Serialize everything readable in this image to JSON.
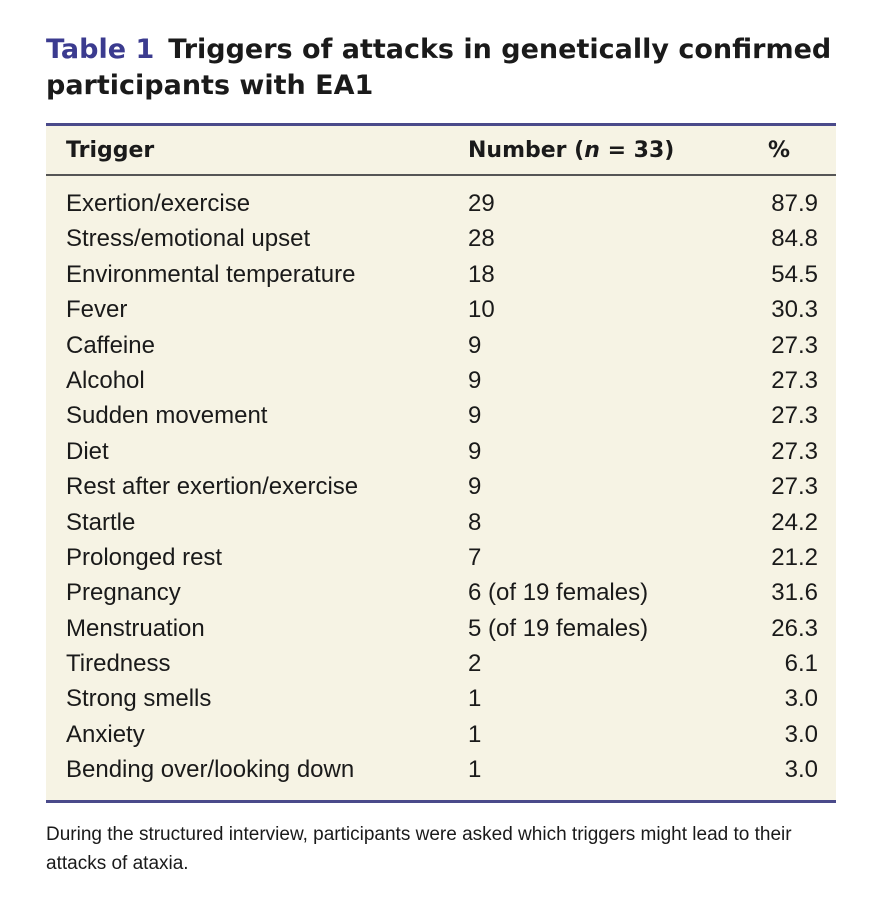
{
  "caption": {
    "label": "Table 1",
    "title": "Triggers of attacks in genetically confirmed participants with EA1"
  },
  "table": {
    "headers": {
      "trigger": "Trigger",
      "number_prefix": "Number (",
      "number_n": "n",
      "number_suffix": " = 33)",
      "percent": "%"
    },
    "rows": [
      {
        "trigger": "Exertion/exercise",
        "number": "29",
        "percent": "87.9"
      },
      {
        "trigger": "Stress/emotional upset",
        "number": "28",
        "percent": "84.8"
      },
      {
        "trigger": "Environmental temperature",
        "number": "18",
        "percent": "54.5"
      },
      {
        "trigger": "Fever",
        "number": "10",
        "percent": "30.3"
      },
      {
        "trigger": "Caffeine",
        "number": "9",
        "percent": "27.3"
      },
      {
        "trigger": "Alcohol",
        "number": "9",
        "percent": "27.3"
      },
      {
        "trigger": "Sudden movement",
        "number": "9",
        "percent": "27.3"
      },
      {
        "trigger": "Diet",
        "number": "9",
        "percent": "27.3"
      },
      {
        "trigger": "Rest after exertion/exercise",
        "number": "9",
        "percent": "27.3"
      },
      {
        "trigger": "Startle",
        "number": "8",
        "percent": "24.2"
      },
      {
        "trigger": "Prolonged rest",
        "number": "7",
        "percent": "21.2"
      },
      {
        "trigger": "Pregnancy",
        "number": "6 (of 19 females)",
        "percent": "31.6"
      },
      {
        "trigger": "Menstruation",
        "number": "5 (of 19 females)",
        "percent": "26.3"
      },
      {
        "trigger": "Tiredness",
        "number": "2",
        "percent": "6.1"
      },
      {
        "trigger": "Strong smells",
        "number": "1",
        "percent": "3.0"
      },
      {
        "trigger": "Anxiety",
        "number": "1",
        "percent": "3.0"
      },
      {
        "trigger": "Bending over/looking down",
        "number": "1",
        "percent": "3.0"
      }
    ]
  },
  "footnote": "During the structured interview, participants were asked which triggers might lead to their attacks of ataxia."
}
